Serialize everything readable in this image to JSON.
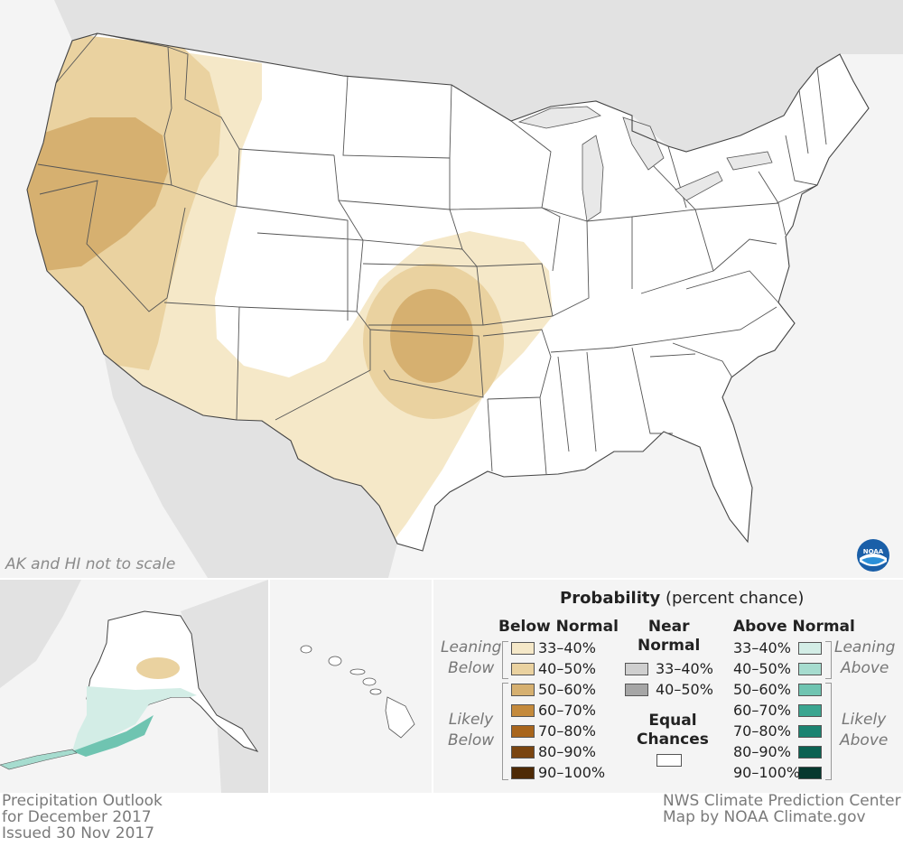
{
  "map": {
    "scale_note": "AK and HI not to scale",
    "logo_name": "noaa-logo",
    "colors": {
      "land": "#ffffff",
      "outside": "#e2e2e2",
      "water": "#f4f4f4",
      "border": "#555555",
      "below_33_40": "#f5e8c8",
      "below_40_50": "#ead2a0",
      "below_50_60": "#d6b070",
      "above_33_40": "#d3ede6"
    }
  },
  "legend": {
    "title_bold": "Probability",
    "title_rest": "(percent chance)",
    "below_header": "Below Normal",
    "near_header_line1": "Near",
    "near_header_line2": "Normal",
    "above_header": "Above Normal",
    "leaning_below_1": "Leaning",
    "leaning_below_2": "Below",
    "likely_below_1": "Likely",
    "likely_below_2": "Below",
    "leaning_above_1": "Leaning",
    "leaning_above_2": "Above",
    "likely_above_1": "Likely",
    "likely_above_2": "Above",
    "equal_1": "Equal",
    "equal_2": "Chances",
    "below": [
      {
        "label": "33–40%",
        "color": "#f5e8c8"
      },
      {
        "label": "40–50%",
        "color": "#ead2a0"
      },
      {
        "label": "50–60%",
        "color": "#d6b070"
      },
      {
        "label": "60–70%",
        "color": "#c48a3c"
      },
      {
        "label": "70–80%",
        "color": "#a8651c"
      },
      {
        "label": "80–90%",
        "color": "#7a4510"
      },
      {
        "label": "90–100%",
        "color": "#4e2a06"
      }
    ],
    "near": [
      {
        "label": "33–40%",
        "color": "#cfcfcf"
      },
      {
        "label": "40–50%",
        "color": "#a6a6a6"
      }
    ],
    "above": [
      {
        "label": "33–40%",
        "color": "#d3ede6"
      },
      {
        "label": "40–50%",
        "color": "#a6dccf"
      },
      {
        "label": "50–60%",
        "color": "#6fc4b1"
      },
      {
        "label": "60–70%",
        "color": "#3aa590"
      },
      {
        "label": "70–80%",
        "color": "#1b8371"
      },
      {
        "label": "80–90%",
        "color": "#0b6252"
      },
      {
        "label": "90–100%",
        "color": "#06382e"
      }
    ]
  },
  "footer": {
    "left_line1": "Precipitation Outlook",
    "left_line2": "for December 2017",
    "left_line3": "Issued 30 Nov 2017",
    "right_line1": "NWS Climate Prediction Center",
    "right_line2": "Map by NOAA Climate.gov"
  }
}
